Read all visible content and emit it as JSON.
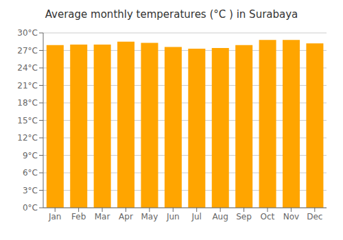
{
  "chart_data": {
    "type": "bar",
    "title": "Average monthly temperatures (°C ) in Surabaya",
    "categories": [
      "Jan",
      "Feb",
      "Mar",
      "Apr",
      "May",
      "Jun",
      "Jul",
      "Aug",
      "Sep",
      "Oct",
      "Nov",
      "Dec"
    ],
    "values": [
      27.9,
      28.0,
      28.0,
      28.5,
      28.3,
      27.6,
      27.3,
      27.4,
      27.9,
      28.8,
      28.8,
      28.2
    ],
    "color": "#FFA500",
    "ylim": [
      0,
      30
    ],
    "yticks": [
      {
        "value": 0,
        "label": "0°C"
      },
      {
        "value": 3,
        "label": "3°C"
      },
      {
        "value": 6,
        "label": "6°C"
      },
      {
        "value": 9,
        "label": "9°C"
      },
      {
        "value": 12,
        "label": "12°C"
      },
      {
        "value": 15,
        "label": "15°C"
      },
      {
        "value": 18,
        "label": "18°C"
      },
      {
        "value": 21,
        "label": "21°C"
      },
      {
        "value": 24,
        "label": "24°C"
      },
      {
        "value": 27,
        "label": "27°C"
      },
      {
        "value": 30,
        "label": "30°C"
      }
    ],
    "grid": true
  }
}
